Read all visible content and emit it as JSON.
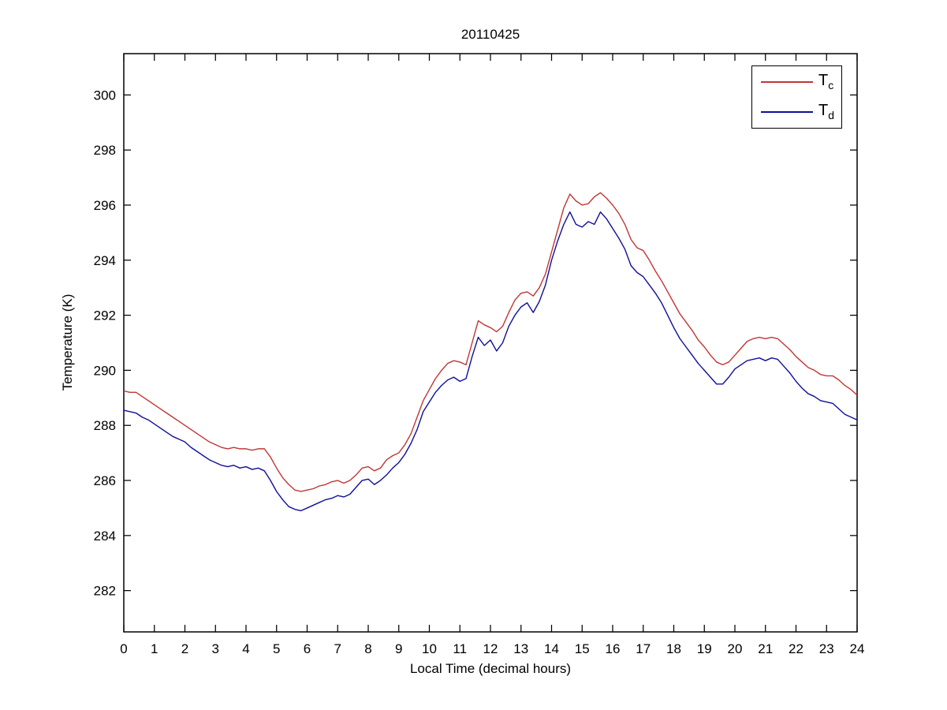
{
  "figure": {
    "background": "#ffffff",
    "axis_color": "#000000"
  },
  "chart_data": {
    "type": "line",
    "title": "20110425",
    "xlabel": "Local Time (decimal hours)",
    "ylabel": "Temperature (K)",
    "xlim": [
      0,
      24
    ],
    "ylim": [
      280.5,
      301.5
    ],
    "xticks": [
      0,
      1,
      2,
      3,
      4,
      5,
      6,
      7,
      8,
      9,
      10,
      11,
      12,
      13,
      14,
      15,
      16,
      17,
      18,
      19,
      20,
      21,
      22,
      23,
      24
    ],
    "yticks": [
      282,
      284,
      286,
      288,
      290,
      292,
      294,
      296,
      298,
      300
    ],
    "grid": false,
    "legend_position": "top-right",
    "x": [
      0,
      0.2,
      0.4,
      0.6,
      0.8,
      1,
      1.2,
      1.4,
      1.6,
      1.8,
      2,
      2.2,
      2.4,
      2.6,
      2.8,
      3,
      3.2,
      3.4,
      3.6,
      3.8,
      4,
      4.2,
      4.4,
      4.6,
      4.8,
      5,
      5.2,
      5.4,
      5.6,
      5.8,
      6,
      6.2,
      6.4,
      6.6,
      6.8,
      7,
      7.2,
      7.4,
      7.6,
      7.8,
      8,
      8.2,
      8.4,
      8.6,
      8.8,
      9,
      9.2,
      9.4,
      9.6,
      9.8,
      10,
      10.2,
      10.4,
      10.6,
      10.8,
      11,
      11.2,
      11.4,
      11.6,
      11.8,
      12,
      12.2,
      12.4,
      12.6,
      12.8,
      13,
      13.2,
      13.4,
      13.6,
      13.8,
      14,
      14.2,
      14.4,
      14.6,
      14.8,
      15,
      15.2,
      15.4,
      15.6,
      15.8,
      16,
      16.2,
      16.4,
      16.6,
      16.8,
      17,
      17.2,
      17.4,
      17.6,
      17.8,
      18,
      18.2,
      18.4,
      18.6,
      18.8,
      19,
      19.2,
      19.4,
      19.6,
      19.8,
      20,
      20.2,
      20.4,
      20.6,
      20.8,
      21,
      21.2,
      21.4,
      21.6,
      21.8,
      22,
      22.2,
      22.4,
      22.6,
      22.8,
      23,
      23.2,
      23.4,
      23.6,
      23.8,
      24
    ],
    "series": [
      {
        "name": "Tc",
        "label_base": "T",
        "label_sub": "c",
        "color": "#c23535",
        "values": [
          289.25,
          289.2,
          289.2,
          289.05,
          288.9,
          288.75,
          288.6,
          288.45,
          288.3,
          288.15,
          288.0,
          287.85,
          287.7,
          287.55,
          287.4,
          287.3,
          287.2,
          287.15,
          287.2,
          287.15,
          287.15,
          287.1,
          287.15,
          287.15,
          286.85,
          286.45,
          286.1,
          285.85,
          285.65,
          285.6,
          285.65,
          285.7,
          285.8,
          285.85,
          285.95,
          286.0,
          285.9,
          286.0,
          286.2,
          286.45,
          286.5,
          286.35,
          286.45,
          286.75,
          286.9,
          287.0,
          287.3,
          287.7,
          288.3,
          288.9,
          289.3,
          289.7,
          290.0,
          290.25,
          290.35,
          290.3,
          290.2,
          291.0,
          291.8,
          291.65,
          291.55,
          291.4,
          291.6,
          292.1,
          292.55,
          292.8,
          292.85,
          292.7,
          293.0,
          293.5,
          294.3,
          295.1,
          295.9,
          296.4,
          296.15,
          296.0,
          296.05,
          296.3,
          296.45,
          296.25,
          296.0,
          295.7,
          295.3,
          294.75,
          294.45,
          294.35,
          294.0,
          293.6,
          293.25,
          292.85,
          292.45,
          292.05,
          291.75,
          291.45,
          291.1,
          290.85,
          290.55,
          290.3,
          290.2,
          290.3,
          290.55,
          290.8,
          291.05,
          291.15,
          291.2,
          291.15,
          291.2,
          291.15,
          290.95,
          290.75,
          290.5,
          290.3,
          290.1,
          290.0,
          289.85,
          289.8,
          289.8,
          289.65,
          289.45,
          289.3,
          289.1
        ]
      },
      {
        "name": "Td",
        "label_base": "T",
        "label_sub": "d",
        "color": "#0f0f99",
        "values": [
          288.55,
          288.5,
          288.45,
          288.3,
          288.2,
          288.05,
          287.9,
          287.75,
          287.6,
          287.5,
          287.4,
          287.2,
          287.05,
          286.9,
          286.75,
          286.65,
          286.55,
          286.5,
          286.55,
          286.45,
          286.5,
          286.4,
          286.45,
          286.35,
          286.0,
          285.6,
          285.3,
          285.05,
          284.95,
          284.9,
          285.0,
          285.1,
          285.2,
          285.3,
          285.35,
          285.45,
          285.4,
          285.5,
          285.75,
          286.0,
          286.05,
          285.85,
          286.0,
          286.2,
          286.45,
          286.65,
          286.95,
          287.35,
          287.85,
          288.5,
          288.85,
          289.2,
          289.45,
          289.65,
          289.75,
          289.6,
          289.7,
          290.5,
          291.2,
          290.9,
          291.1,
          290.7,
          291.0,
          291.6,
          292.0,
          292.3,
          292.45,
          292.1,
          292.5,
          293.1,
          294.0,
          294.7,
          295.3,
          295.75,
          295.3,
          295.2,
          295.4,
          295.3,
          295.75,
          295.5,
          295.15,
          294.8,
          294.4,
          293.8,
          293.55,
          293.4,
          293.1,
          292.8,
          292.45,
          292.0,
          291.55,
          291.15,
          290.85,
          290.55,
          290.25,
          290.0,
          289.75,
          289.5,
          289.5,
          289.75,
          290.05,
          290.2,
          290.35,
          290.4,
          290.45,
          290.35,
          290.45,
          290.4,
          290.15,
          289.9,
          289.6,
          289.35,
          289.15,
          289.05,
          288.9,
          288.85,
          288.8,
          288.6,
          288.4,
          288.3,
          288.2
        ]
      }
    ]
  }
}
